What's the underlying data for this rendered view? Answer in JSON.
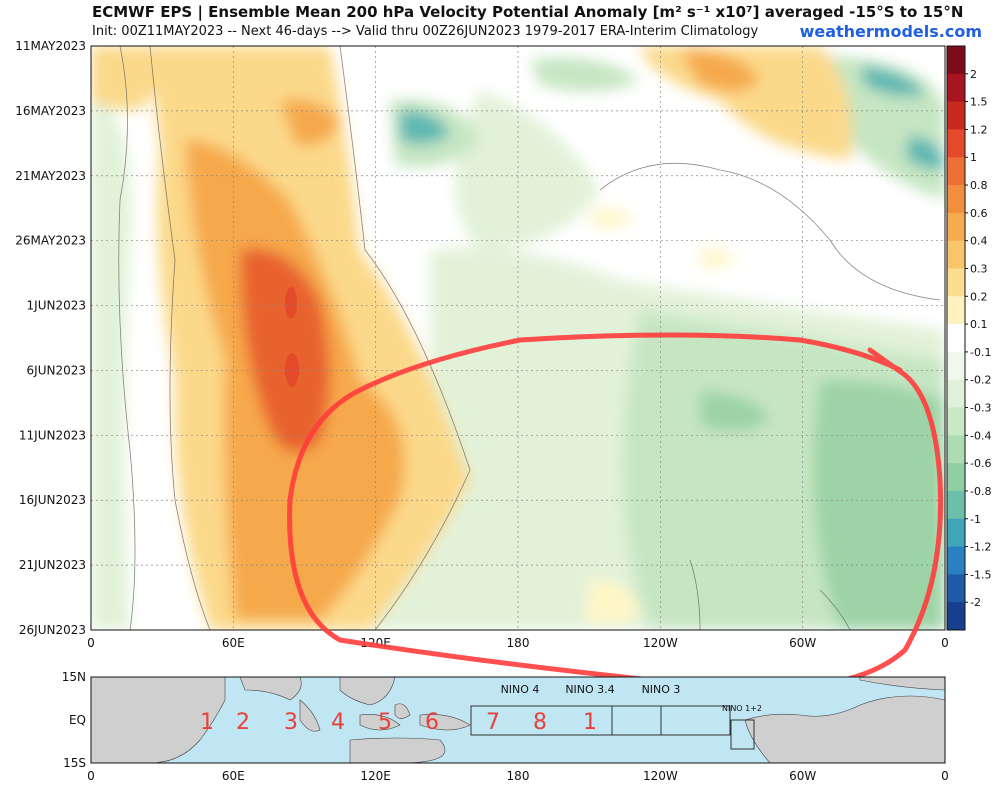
{
  "header": {
    "title": "ECMWF EPS | Ensemble Mean 200 hPa Velocity Potential Anomaly [m² s⁻¹ x10⁷] averaged -15°S to 15°N",
    "subtitle": "Init: 00Z11MAY2023 -- Next 46-days --> Valid thru 00Z26JUN2023 1979-2017 ERA-Interim Climatology",
    "brand": "weathermodels.com"
  },
  "chart_data": [
    {
      "type": "heatmap",
      "title": "Ensemble Mean 200 hPa Velocity Potential Anomaly [m² s⁻¹ x10⁷] averaged -15°S to 15°N",
      "x_ticks": [
        "0",
        "60E",
        "120E",
        "180",
        "120W",
        "60W",
        "0"
      ],
      "y_ticks": [
        "11MAY2023",
        "16MAY2023",
        "21MAY2023",
        "26MAY2023",
        "1JUN2023",
        "6JUN2023",
        "11JUN2023",
        "16JUN2023",
        "21JUN2023",
        "26JUN2023"
      ],
      "colorbar_levels": [
        "2",
        "1.5",
        "1.2",
        "1",
        "0.8",
        "0.6",
        "0.4",
        "0.3",
        "0.2",
        "0.1",
        "-0.1",
        "-0.2",
        "-0.3",
        "-0.4",
        "-0.6",
        "-0.8",
        "-1",
        "-1.2",
        "-1.5",
        "-2"
      ],
      "colors": {
        "pos_strong": "#e8622f",
        "pos_mid": "#f6a94c",
        "pos_light": "#fbd98a",
        "pos_faint": "#fff6c7",
        "neg_faint": "#e2f2d9",
        "neg_light": "#c6e6c2",
        "neg_mid": "#9dd3a6",
        "neg_strong": "#5bb7b3",
        "annotation": "#ff3c3c"
      },
      "features": [
        {
          "name": "positive anomaly band",
          "lon_range": [
            "55E",
            "130E"
          ],
          "peak": 1.0
        },
        {
          "name": "negative anomaly region",
          "lon_range": [
            "150E",
            "0"
          ],
          "peak": -0.8
        }
      ],
      "grid": true,
      "colorbar": "right"
    },
    {
      "type": "map",
      "y_ticks": [
        "15N",
        "EQ",
        "15S"
      ],
      "x_ticks": [
        "0",
        "60E",
        "120E",
        "180",
        "120W",
        "60W",
        "0"
      ],
      "region_numbers": [
        "1",
        "2",
        "3",
        "4",
        "5",
        "6",
        "7",
        "8",
        "1"
      ],
      "nino_labels": [
        "NINO 4",
        "NINO 3.4",
        "NINO 3",
        "NINO 1+2"
      ],
      "colors": {
        "ocean": "#bfe6f2",
        "land": "#cfcfcf",
        "numbers": "#e8403a"
      }
    }
  ]
}
